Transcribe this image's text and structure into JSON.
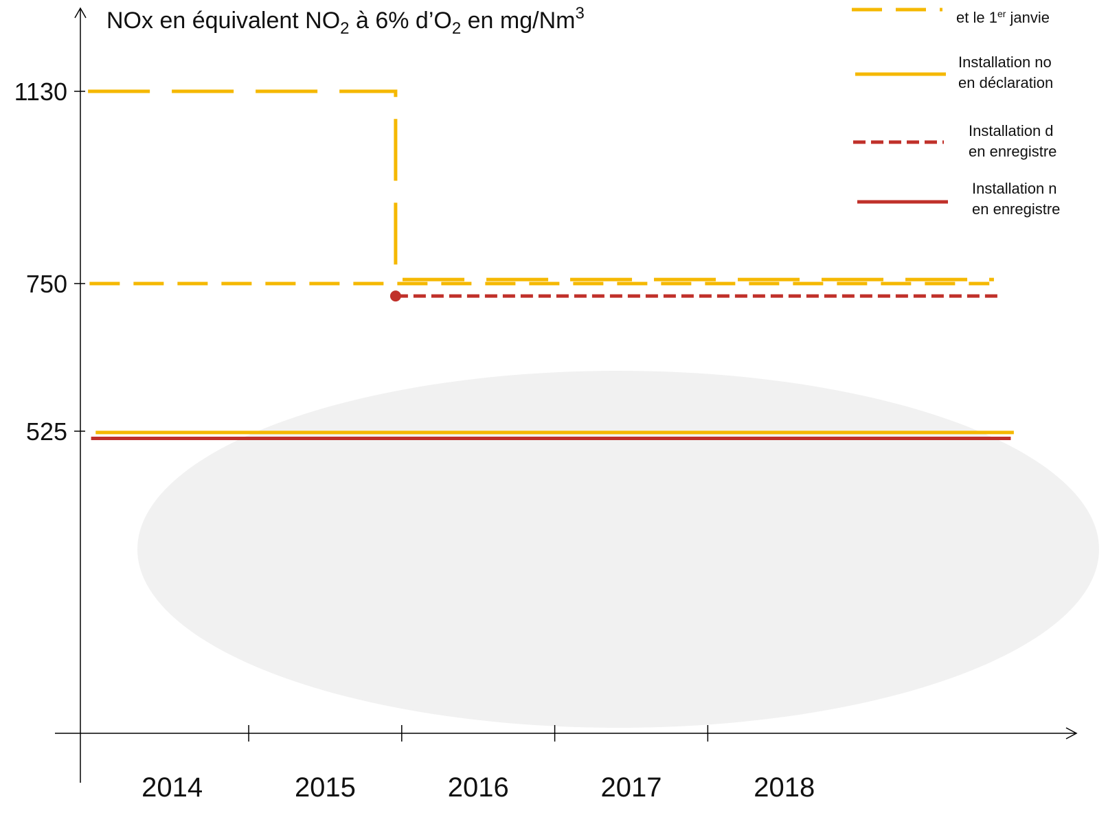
{
  "chart_data": {
    "type": "line",
    "title": [
      "NOx en équivalent NO",
      "2",
      " à 6% d’O",
      "2",
      " en mg/Nm",
      "3"
    ],
    "categories": [
      "2014",
      "2015",
      "2016",
      "2017",
      "2018"
    ],
    "xlim": [
      2013.9,
      2020.4
    ],
    "xticks": [
      2015,
      2016,
      2017,
      2018
    ],
    "yticks": [
      525,
      750,
      1130
    ],
    "series": [
      {
        "color": "#f5b800",
        "dash": "long",
        "x": [
          2013.95,
          2015.96,
          2015.96,
          2019.87
        ],
        "values": [
          1130,
          1130,
          758,
          758
        ]
      },
      {
        "name": [
          "et le 1",
          "er",
          " janvie"
        ],
        "color": "#f5b800",
        "dash": "medium",
        "x": [
          2013.96,
          2019.84
        ],
        "values": [
          750,
          750
        ]
      },
      {
        "name": "Installation no\nen déclaration",
        "color": "#f5b800",
        "dash": "solid",
        "x": [
          2014.0,
          2020.0
        ],
        "values": [
          523,
          523
        ]
      },
      {
        "name": "Installation d\nen enregistre",
        "color": "#c0302a",
        "dash": "short",
        "marker_start": true,
        "x": [
          2015.96,
          2019.91
        ],
        "values": [
          731,
          731
        ]
      },
      {
        "name": "Installation n\nen enregistre",
        "color": "#c0302a",
        "dash": "solid",
        "x": [
          2013.97,
          2019.98
        ],
        "values": [
          514,
          514
        ]
      }
    ]
  }
}
